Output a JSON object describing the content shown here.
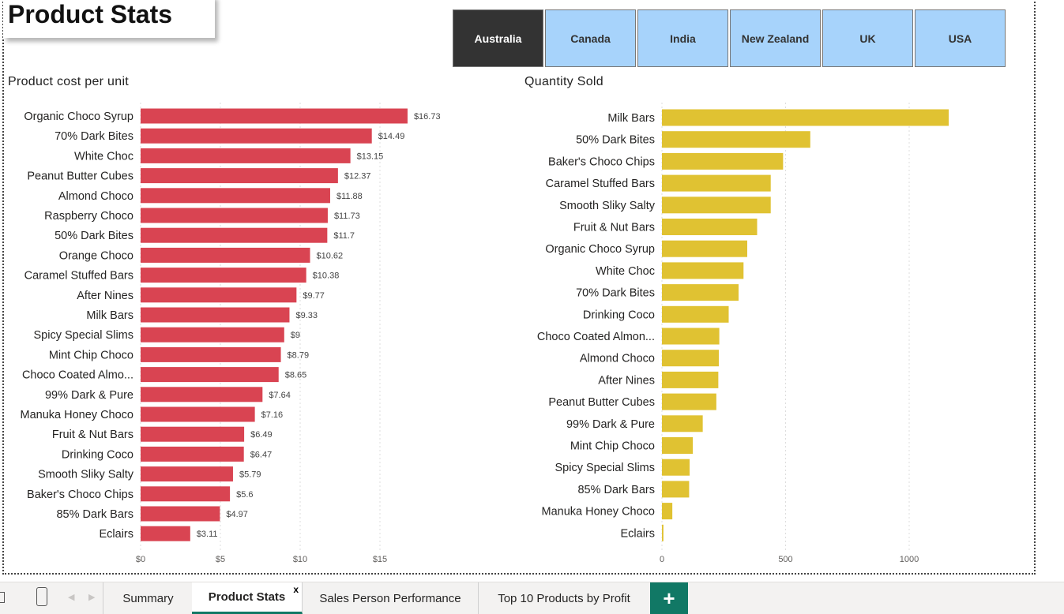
{
  "page_title": "Product Stats",
  "slicer": {
    "selected": "Australia",
    "items": [
      "Australia",
      "Canada",
      "India",
      "New Zealand",
      "UK",
      "USA"
    ]
  },
  "colors": {
    "cost_bar": "#d94452",
    "qty_bar": "#e0c232",
    "selected_button": "#333333",
    "button": "#a7d3fb",
    "tab_accent": "#117865"
  },
  "chart_data": [
    {
      "type": "bar",
      "orientation": "horizontal",
      "title": "Product cost per unit",
      "categories": [
        "Organic Choco Syrup",
        "70% Dark Bites",
        "White Choc",
        "Peanut Butter Cubes",
        "Almond Choco",
        "Raspberry Choco",
        "50% Dark Bites",
        "Orange Choco",
        "Caramel Stuffed Bars",
        "After Nines",
        "Milk Bars",
        "Spicy Special Slims",
        "Mint Chip Choco",
        "Choco Coated Almo...",
        "99% Dark & Pure",
        "Manuka Honey Choco",
        "Fruit & Nut Bars",
        "Drinking Coco",
        "Smooth Sliky Salty",
        "Baker's Choco Chips",
        "85% Dark Bars",
        "Eclairs"
      ],
      "values": [
        16.73,
        14.49,
        13.15,
        12.37,
        11.88,
        11.73,
        11.7,
        10.62,
        10.38,
        9.77,
        9.33,
        9,
        8.79,
        8.65,
        7.64,
        7.16,
        6.49,
        6.47,
        5.79,
        5.6,
        4.97,
        3.11
      ],
      "data_labels": [
        "$16.73",
        "$14.49",
        "$13.15",
        "$12.37",
        "$11.88",
        "$11.73",
        "$11.7",
        "$10.62",
        "$10.38",
        "$9.77",
        "$9.33",
        "$9",
        "$8.79",
        "$8.65",
        "$7.64",
        "$7.16",
        "$6.49",
        "$6.47",
        "$5.79",
        "$5.6",
        "$4.97",
        "$3.11"
      ],
      "x_ticks": [
        0,
        5,
        10,
        15
      ],
      "x_tick_labels": [
        "$0",
        "$5",
        "$10",
        "$15"
      ],
      "xlim": [
        0,
        20
      ],
      "grid": true
    },
    {
      "type": "bar",
      "orientation": "horizontal",
      "title": "Quantity Sold",
      "categories": [
        "Milk Bars",
        "50% Dark Bites",
        "Baker's Choco Chips",
        "Caramel Stuffed Bars",
        "Smooth Sliky Salty",
        "Fruit & Nut Bars",
        "Organic Choco Syrup",
        "White Choc",
        "70% Dark Bites",
        "Drinking Coco",
        "Choco Coated Almon...",
        "Almond Choco",
        "After Nines",
        "Peanut Butter Cubes",
        "99% Dark & Pure",
        "Mint Chip Choco",
        "Spicy Special Slims",
        "85% Dark Bars",
        "Manuka Honey Choco",
        "Eclairs"
      ],
      "values": [
        1160,
        600,
        490,
        440,
        440,
        385,
        345,
        330,
        310,
        270,
        232,
        230,
        228,
        220,
        165,
        125,
        112,
        110,
        42,
        6
      ],
      "x_ticks": [
        0,
        500,
        1000
      ],
      "x_tick_labels": [
        "0",
        "500",
        "1000"
      ],
      "xlim": [
        0,
        1500
      ],
      "grid": true
    }
  ],
  "tabs": {
    "summary": "Summary",
    "product_stats": "Product Stats",
    "close_glyph": "x",
    "sales_person": "Sales Person Performance",
    "top10": "Top 10 Products by Profit",
    "add": "+"
  }
}
